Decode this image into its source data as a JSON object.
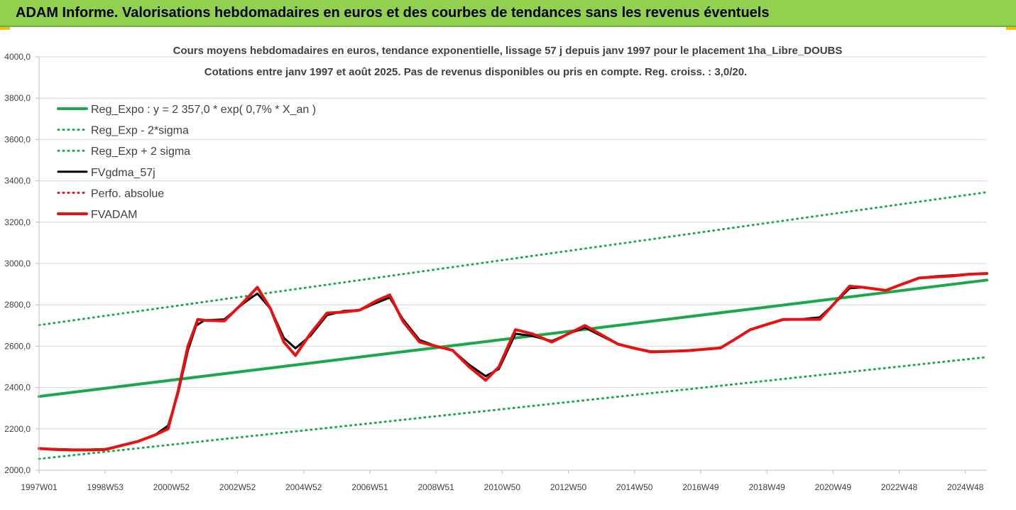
{
  "header": {
    "title": "ADAM Informe. Valorisations hebdomadaires en euros et des courbes de tendances sans les revenus éventuels"
  },
  "colors": {
    "header_bg": "#92d050",
    "trend_green": "#1aa84a",
    "value_red": "#e81010",
    "value_black": "#000000",
    "grid": "#d9d9d9"
  },
  "chart_data": {
    "type": "line",
    "title": "Cours moyens hebdomadaires en euros, tendance exponentielle, lissage 57 j depuis janv 1997 pour le placement 1ha_Libre_DOUBS",
    "subtitle": "Cotations entre janv 1997 et août 2025.  Pas de revenus disponibles ou pris en compte. Reg. croiss. : 3,0/20.",
    "xlabel": "",
    "ylabel": "",
    "ylim": [
      2000,
      4000
    ],
    "xlim": [
      1997.0,
      2025.65
    ],
    "y_ticks": [
      "2000,0",
      "2200,0",
      "2400,0",
      "2600,0",
      "2800,0",
      "3000,0",
      "3200,0",
      "3400,0",
      "3600,0",
      "3800,0",
      "4000,0"
    ],
    "x_ticks": [
      {
        "label": "1997W01",
        "x": 1997.0
      },
      {
        "label": "1998W53",
        "x": 1999.0
      },
      {
        "label": "2000W52",
        "x": 2001.0
      },
      {
        "label": "2002W52",
        "x": 2003.0
      },
      {
        "label": "2004W52",
        "x": 2005.0
      },
      {
        "label": "2006W51",
        "x": 2007.0
      },
      {
        "label": "2008W51",
        "x": 2009.0
      },
      {
        "label": "2010W50",
        "x": 2011.0
      },
      {
        "label": "2012W50",
        "x": 2013.0
      },
      {
        "label": "2014W50",
        "x": 2015.0
      },
      {
        "label": "2016W49",
        "x": 2017.0
      },
      {
        "label": "2018W49",
        "x": 2019.0
      },
      {
        "label": "2020W49",
        "x": 2021.0
      },
      {
        "label": "2022W48",
        "x": 2023.0
      },
      {
        "label": "2024W48",
        "x": 2025.0
      }
    ],
    "grid": "horizontal",
    "legend_position": "top-left",
    "series": [
      {
        "name": "Reg_Expo : y = 2 357,0 * exp( 0,7% *  X_an )",
        "style": "solid-thick",
        "color": "#1aa84a",
        "points": [
          [
            1997.0,
            2357
          ],
          [
            2025.65,
            2920
          ]
        ]
      },
      {
        "name": "Reg_Exp - 2*sigma",
        "style": "dotted",
        "color": "#1aa84a",
        "points": [
          [
            1997.0,
            2055
          ],
          [
            2025.65,
            2547
          ]
        ]
      },
      {
        "name": "Reg_Exp + 2 sigma",
        "style": "dotted",
        "color": "#1aa84a",
        "points": [
          [
            1997.0,
            2702
          ],
          [
            2025.65,
            3345
          ]
        ]
      },
      {
        "name": "FVgdma_57j",
        "style": "solid",
        "color": "#000000",
        "points": [
          [
            1997.0,
            2105
          ],
          [
            1997.5,
            2102
          ],
          [
            1998.0,
            2100
          ],
          [
            1998.5,
            2100
          ],
          [
            1999.0,
            2102
          ],
          [
            1999.5,
            2120
          ],
          [
            2000.0,
            2140
          ],
          [
            2000.5,
            2170
          ],
          [
            2000.9,
            2215
          ],
          [
            2001.2,
            2370
          ],
          [
            2001.5,
            2580
          ],
          [
            2001.75,
            2700
          ],
          [
            2002.0,
            2725
          ],
          [
            2002.6,
            2730
          ],
          [
            2003.2,
            2810
          ],
          [
            2003.6,
            2855
          ],
          [
            2004.0,
            2780
          ],
          [
            2004.4,
            2640
          ],
          [
            2004.75,
            2590
          ],
          [
            2005.2,
            2650
          ],
          [
            2005.7,
            2750
          ],
          [
            2006.2,
            2770
          ],
          [
            2006.7,
            2775
          ],
          [
            2007.2,
            2810
          ],
          [
            2007.6,
            2835
          ],
          [
            2008.0,
            2730
          ],
          [
            2008.5,
            2630
          ],
          [
            2009.0,
            2600
          ],
          [
            2009.5,
            2580
          ],
          [
            2010.0,
            2510
          ],
          [
            2010.5,
            2455
          ],
          [
            2010.9,
            2490
          ],
          [
            2011.4,
            2660
          ],
          [
            2011.9,
            2650
          ],
          [
            2012.5,
            2625
          ],
          [
            2013.0,
            2660
          ],
          [
            2013.5,
            2690
          ],
          [
            2014.0,
            2650
          ],
          [
            2014.5,
            2610
          ],
          [
            2015.0,
            2590
          ],
          [
            2015.5,
            2575
          ],
          [
            2016.0,
            2575
          ],
          [
            2016.6,
            2580
          ],
          [
            2017.1,
            2585
          ],
          [
            2017.6,
            2590
          ],
          [
            2018.0,
            2630
          ],
          [
            2018.5,
            2680
          ],
          [
            2019.0,
            2705
          ],
          [
            2019.5,
            2728
          ],
          [
            2020.0,
            2730
          ],
          [
            2020.6,
            2740
          ],
          [
            2021.0,
            2800
          ],
          [
            2021.5,
            2880
          ],
          [
            2021.9,
            2885
          ],
          [
            2022.6,
            2870
          ],
          [
            2023.0,
            2895
          ],
          [
            2023.6,
            2930
          ],
          [
            2024.1,
            2938
          ],
          [
            2024.6,
            2943
          ],
          [
            2025.1,
            2948
          ],
          [
            2025.65,
            2950
          ]
        ]
      },
      {
        "name": "Perfo. absolue",
        "style": "dotted",
        "color": "#e81010",
        "points": []
      },
      {
        "name": "FVADAM",
        "style": "solid-thick",
        "color": "#e81010",
        "points": [
          [
            1997.0,
            2105
          ],
          [
            1997.5,
            2100
          ],
          [
            1998.0,
            2098
          ],
          [
            1998.5,
            2098
          ],
          [
            1999.0,
            2100
          ],
          [
            1999.5,
            2120
          ],
          [
            2000.0,
            2140
          ],
          [
            2000.5,
            2170
          ],
          [
            2000.9,
            2200
          ],
          [
            2001.2,
            2380
          ],
          [
            2001.5,
            2600
          ],
          [
            2001.8,
            2730
          ],
          [
            2002.0,
            2725
          ],
          [
            2002.6,
            2722
          ],
          [
            2003.1,
            2800
          ],
          [
            2003.6,
            2885
          ],
          [
            2004.0,
            2780
          ],
          [
            2004.4,
            2620
          ],
          [
            2004.75,
            2555
          ],
          [
            2005.2,
            2660
          ],
          [
            2005.7,
            2760
          ],
          [
            2006.2,
            2765
          ],
          [
            2006.7,
            2775
          ],
          [
            2007.2,
            2820
          ],
          [
            2007.6,
            2848
          ],
          [
            2008.0,
            2720
          ],
          [
            2008.5,
            2620
          ],
          [
            2009.0,
            2600
          ],
          [
            2009.5,
            2580
          ],
          [
            2010.0,
            2500
          ],
          [
            2010.5,
            2435
          ],
          [
            2010.9,
            2500
          ],
          [
            2011.4,
            2680
          ],
          [
            2011.9,
            2660
          ],
          [
            2012.5,
            2620
          ],
          [
            2013.0,
            2660
          ],
          [
            2013.5,
            2700
          ],
          [
            2014.0,
            2655
          ],
          [
            2014.5,
            2610
          ],
          [
            2015.0,
            2590
          ],
          [
            2015.5,
            2572
          ],
          [
            2016.0,
            2575
          ],
          [
            2016.6,
            2578
          ],
          [
            2017.1,
            2585
          ],
          [
            2017.6,
            2592
          ],
          [
            2018.0,
            2630
          ],
          [
            2018.5,
            2680
          ],
          [
            2019.0,
            2705
          ],
          [
            2019.5,
            2730
          ],
          [
            2020.0,
            2730
          ],
          [
            2020.6,
            2730
          ],
          [
            2021.0,
            2800
          ],
          [
            2021.5,
            2890
          ],
          [
            2021.9,
            2885
          ],
          [
            2022.6,
            2870
          ],
          [
            2023.0,
            2895
          ],
          [
            2023.6,
            2930
          ],
          [
            2024.1,
            2935
          ],
          [
            2024.6,
            2940
          ],
          [
            2025.1,
            2948
          ],
          [
            2025.65,
            2952
          ]
        ]
      }
    ]
  }
}
